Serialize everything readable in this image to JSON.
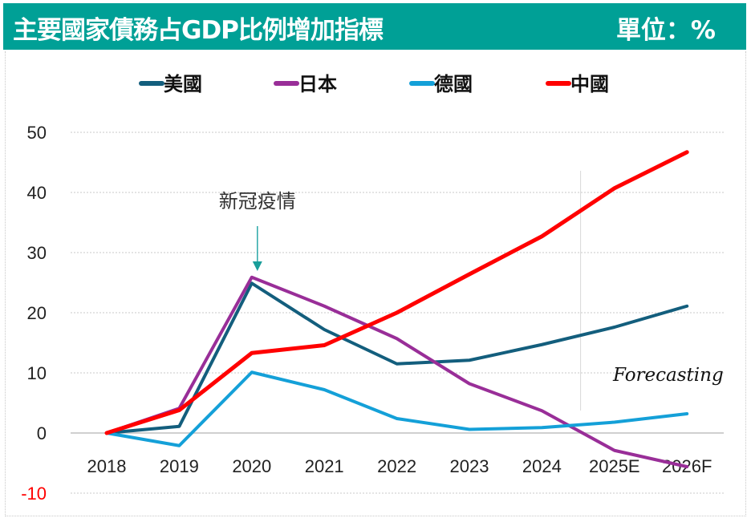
{
  "header": {
    "title": "主要國家債務占GDP比例增加指標",
    "unit": "單位：%"
  },
  "colors": {
    "header_bg": "#00A096",
    "annotation_arrow": "#2AA7A7",
    "negative_tick": "#FF0000"
  },
  "chart_data": {
    "type": "line",
    "title": "主要國家債務占GDP比例增加指標",
    "unit": "單位：%",
    "xlabel": "",
    "ylabel": "",
    "categories": [
      "2018",
      "2019",
      "2020",
      "2021",
      "2022",
      "2023",
      "2024",
      "2025E",
      "2026F"
    ],
    "ylim": [
      -10,
      50
    ],
    "yticks": [
      {
        "value": 50,
        "label": "50"
      },
      {
        "value": 40,
        "label": "40"
      },
      {
        "value": 30,
        "label": "30"
      },
      {
        "value": 20,
        "label": "20"
      },
      {
        "value": 10,
        "label": "10"
      },
      {
        "value": 0,
        "label": "0"
      },
      {
        "value": -10,
        "label": "-10"
      }
    ],
    "grid": true,
    "legend_position": "top-center",
    "series": [
      {
        "name": "美國",
        "color": "#135E7D",
        "values": [
          0,
          1.1,
          24.9,
          17.2,
          11.5,
          12.1,
          14.7,
          17.6,
          21.1
        ]
      },
      {
        "name": "日本",
        "color": "#992E98",
        "values": [
          0,
          4.1,
          25.9,
          21.1,
          15.7,
          8.2,
          3.7,
          -2.9,
          -5.6
        ]
      },
      {
        "name": "德國",
        "color": "#14A0D8",
        "values": [
          0,
          -2.1,
          10.1,
          7.2,
          2.4,
          0.6,
          0.9,
          1.8,
          3.2
        ]
      },
      {
        "name": "中國",
        "color": "#FF0000",
        "values": [
          0,
          3.8,
          13.3,
          14.6,
          20.0,
          26.4,
          32.7,
          40.7,
          46.7
        ]
      }
    ],
    "annotations": [
      {
        "text": "新冠疫情",
        "category": "2020",
        "type": "arrow"
      },
      {
        "text": "Forecasting",
        "region_start": "2025E",
        "type": "divider"
      }
    ]
  }
}
